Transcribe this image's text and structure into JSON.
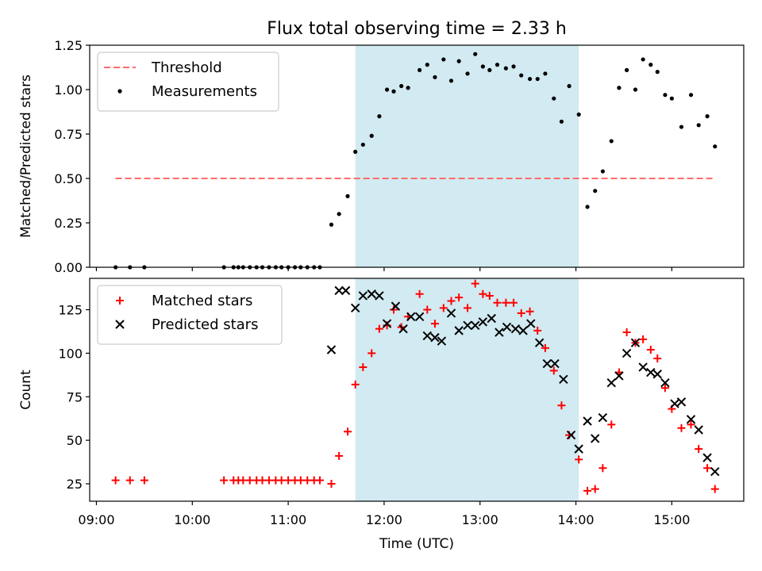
{
  "chart_data": {
    "title": "Flux total observing time = 2.33 h",
    "xlabel": "Time (UTC)",
    "x_unit": "hours UTC",
    "xlim": [
      8.93,
      15.75
    ],
    "x_ticks": [
      9,
      10,
      11,
      12,
      13,
      14,
      15
    ],
    "x_tick_labels": [
      "09:00",
      "10:00",
      "11:00",
      "12:00",
      "13:00",
      "14:00",
      "15:00"
    ],
    "highlight_span": {
      "x": [
        11.7,
        14.03
      ],
      "color": "#add8e6"
    },
    "panels": [
      {
        "type": "scatter",
        "ylabel": "Matched/Predicted stars",
        "ylim": [
          0,
          1.25
        ],
        "y_ticks": [
          0,
          0.25,
          0.5,
          0.75,
          1.0,
          1.25
        ],
        "y_tick_labels": [
          "0.00",
          "0.25",
          "0.50",
          "0.75",
          "1.00",
          "1.25"
        ],
        "legend": {
          "location": "upper left",
          "entries": [
            "Threshold",
            "Measurements"
          ]
        },
        "threshold": {
          "name": "Threshold",
          "y": 0.5,
          "x": [
            9.2,
            15.45
          ],
          "color": "#ff6b6b",
          "style": "dashed"
        },
        "series": [
          {
            "name": "Measurements",
            "marker": "dot",
            "color": "#000000",
            "x": [
              9.2,
              9.35,
              9.5,
              10.33,
              10.43,
              10.48,
              10.53,
              10.6,
              10.67,
              10.73,
              10.8,
              10.87,
              10.93,
              11.0,
              11.07,
              11.13,
              11.2,
              11.27,
              11.33,
              11.45,
              11.53,
              11.62,
              11.7,
              11.78,
              11.87,
              11.95,
              12.03,
              12.1,
              12.18,
              12.25,
              12.37,
              12.45,
              12.53,
              12.62,
              12.7,
              12.78,
              12.87,
              12.95,
              13.03,
              13.1,
              13.18,
              13.27,
              13.35,
              13.43,
              13.52,
              13.6,
              13.68,
              13.77,
              13.85,
              13.93,
              14.03,
              14.12,
              14.2,
              14.28,
              14.37,
              14.45,
              14.53,
              14.62,
              14.7,
              14.78,
              14.85,
              14.93,
              15.0,
              15.1,
              15.2,
              15.28,
              15.37,
              15.45
            ],
            "y": [
              0,
              0,
              0,
              0,
              0,
              0,
              0,
              0,
              0,
              0,
              0,
              0,
              0,
              0,
              0,
              0,
              0,
              0,
              0,
              0.24,
              0.3,
              0.4,
              0.65,
              0.69,
              0.74,
              0.85,
              1.0,
              0.99,
              1.02,
              1.01,
              1.11,
              1.14,
              1.07,
              1.17,
              1.05,
              1.16,
              1.09,
              1.2,
              1.13,
              1.11,
              1.14,
              1.12,
              1.13,
              1.08,
              1.06,
              1.06,
              1.09,
              0.95,
              0.82,
              1.02,
              0.86,
              0.34,
              0.43,
              0.54,
              0.71,
              1.01,
              1.11,
              1.0,
              1.17,
              1.14,
              1.1,
              0.97,
              0.95,
              0.79,
              0.97,
              0.8,
              0.85,
              0.68
            ]
          }
        ]
      },
      {
        "type": "scatter",
        "ylabel": "Count",
        "ylim": [
          15,
          143
        ],
        "y_ticks": [
          25,
          50,
          75,
          100,
          125
        ],
        "y_tick_labels": [
          "25",
          "50",
          "75",
          "100",
          "125"
        ],
        "legend": {
          "location": "upper left",
          "entries": [
            "Matched stars",
            "Predicted stars"
          ]
        },
        "series": [
          {
            "name": "Matched stars",
            "marker": "plus",
            "color": "#ff0000",
            "x": [
              9.2,
              9.35,
              9.5,
              10.33,
              10.43,
              10.48,
              10.53,
              10.6,
              10.67,
              10.73,
              10.8,
              10.87,
              10.93,
              11.0,
              11.07,
              11.13,
              11.2,
              11.27,
              11.33,
              11.45,
              11.53,
              11.62,
              11.7,
              11.78,
              11.87,
              11.95,
              12.03,
              12.1,
              12.18,
              12.25,
              12.37,
              12.45,
              12.53,
              12.62,
              12.7,
              12.78,
              12.87,
              12.95,
              13.03,
              13.1,
              13.18,
              13.27,
              13.35,
              13.43,
              13.52,
              13.6,
              13.68,
              13.77,
              13.85,
              13.93,
              14.03,
              14.12,
              14.2,
              14.28,
              14.37,
              14.45,
              14.53,
              14.62,
              14.7,
              14.78,
              14.85,
              14.93,
              15.0,
              15.1,
              15.2,
              15.28,
              15.37,
              15.45
            ],
            "y": [
              27,
              27,
              27,
              27,
              27,
              27,
              27,
              27,
              27,
              27,
              27,
              27,
              27,
              27,
              27,
              27,
              27,
              27,
              27,
              25,
              41,
              55,
              82,
              92,
              100,
              114,
              116,
              125,
              115,
              121,
              134,
              125,
              117,
              126,
              130,
              132,
              126,
              140,
              134,
              133,
              129,
              129,
              129,
              123,
              124,
              113,
              103,
              90,
              70,
              53,
              39,
              21,
              22,
              34,
              59,
              89,
              112,
              106,
              108,
              102,
              97,
              80,
              68,
              57,
              59,
              45,
              34,
              22
            ]
          },
          {
            "name": "Predicted stars",
            "marker": "x",
            "color": "#000000",
            "x": [
              11.45,
              11.53,
              11.6,
              11.7,
              11.78,
              11.87,
              11.95,
              12.03,
              12.12,
              12.2,
              12.28,
              12.37,
              12.45,
              12.53,
              12.6,
              12.7,
              12.78,
              12.87,
              12.95,
              13.03,
              13.12,
              13.2,
              13.28,
              13.37,
              13.45,
              13.53,
              13.62,
              13.7,
              13.78,
              13.87,
              13.95,
              14.03,
              14.12,
              14.2,
              14.28,
              14.37,
              14.45,
              14.53,
              14.62,
              14.7,
              14.78,
              14.85,
              14.93,
              15.03,
              15.1,
              15.2,
              15.28,
              15.37,
              15.45
            ],
            "y": [
              102,
              136,
              136,
              126,
              133,
              134,
              133,
              117,
              127,
              114,
              121,
              121,
              110,
              109,
              107,
              123,
              113,
              116,
              116,
              118,
              120,
              112,
              115,
              114,
              113,
              117,
              106,
              94,
              94,
              85,
              53,
              45,
              61,
              51,
              63,
              83,
              87,
              100,
              106,
              92,
              89,
              88,
              83,
              71,
              72,
              62,
              56,
              40,
              32
            ]
          }
        ]
      }
    ]
  }
}
